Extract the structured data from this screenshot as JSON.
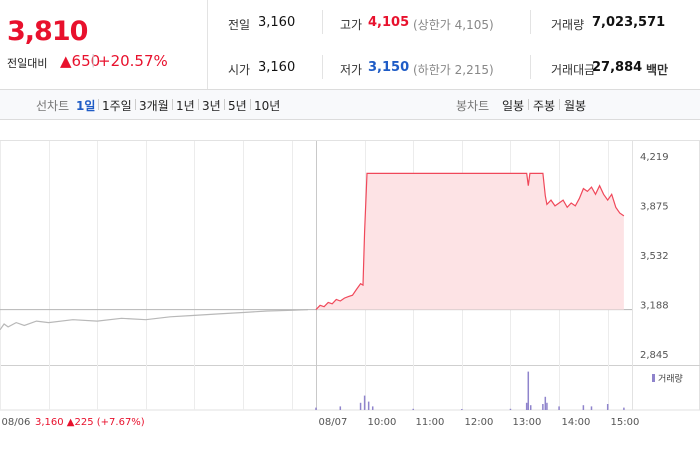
{
  "header": {
    "price": "3,810",
    "change_label": "전일대비",
    "change": "▲650",
    "change_rate": "+20.57%"
  },
  "info": [
    [
      {
        "label": "전일",
        "value": "3,160"
      },
      {
        "label": "고가",
        "value": "4,105",
        "extra": "(상한가 4,105)"
      },
      {
        "label": "거래량",
        "value": "7,023,571"
      }
    ],
    [
      {
        "label": "시가",
        "value": "3,160"
      },
      {
        "label": "저가",
        "value": "3,150",
        "extra": "(하한가 2,215)"
      },
      {
        "label": "거래대금",
        "value": "27,884",
        "unit": "백만"
      }
    ]
  ],
  "tabs": {
    "line_label": "선차트",
    "line": [
      "1일",
      "1주일",
      "3개월",
      "1년",
      "3년",
      "5년",
      "10년"
    ],
    "selected": "1일",
    "candle_label": "봉차트",
    "candle": [
      "일봉",
      "주봉",
      "월봉"
    ]
  },
  "chart_data": {
    "type": "line",
    "xlim": [
      "08/06 09:00",
      "08/07 15:30"
    ],
    "ylim": [
      2845,
      4219
    ],
    "yticks": [
      {
        "value": 4219,
        "label": "4,219"
      },
      {
        "value": 3875,
        "label": "3,875"
      },
      {
        "value": 3532,
        "label": "3,532"
      },
      {
        "value": 3188,
        "label": "3,188"
      },
      {
        "value": 2845,
        "label": "2,845"
      }
    ],
    "xticks": [
      {
        "value": "08/06 09:00",
        "label": "08/06"
      },
      {
        "value": "08/06 10:00",
        "label": null
      },
      {
        "value": "08/06 11:00",
        "label": null
      },
      {
        "value": "08/06 12:00",
        "label": null
      },
      {
        "value": "08/06 13:00",
        "label": null
      },
      {
        "value": "08/06 14:00",
        "label": null
      },
      {
        "value": "08/06 15:00",
        "label": null
      },
      {
        "value": "08/07 09:00",
        "label": "08/07"
      },
      {
        "value": "08/07 10:00",
        "label": "10:00"
      },
      {
        "value": "08/07 11:00",
        "label": "11:00"
      },
      {
        "value": "08/07 12:00",
        "label": "12:00"
      },
      {
        "value": "08/07 13:00",
        "label": "13:00"
      },
      {
        "value": "08/07 14:00",
        "label": "14:00"
      },
      {
        "value": "08/07 15:00",
        "label": "15:00"
      }
    ],
    "baseline": 3160,
    "annotation": "3,160 ▲225 (+7.67%)",
    "series": [
      {
        "color": "#b8b8b8",
        "x": [
          "08/06 09:00",
          "08/06 09:05",
          "08/06 09:10",
          "08/06 09:20",
          "08/06 09:30",
          "08/06 09:45",
          "08/06 10:00",
          "08/06 10:30",
          "08/06 11:00",
          "08/06 11:30",
          "08/06 12:00",
          "08/06 12:30",
          "08/06 13:00",
          "08/06 13:30",
          "08/06 14:00",
          "08/06 14:30",
          "08/06 15:00",
          "08/06 15:20"
        ],
        "values": [
          3020,
          3060,
          3040,
          3070,
          3050,
          3080,
          3070,
          3090,
          3080,
          3100,
          3090,
          3110,
          3120,
          3130,
          3140,
          3150,
          3155,
          3160
        ]
      },
      {
        "color": "#f0485a",
        "fill": "#fde3e5",
        "x": [
          "08/07 09:00",
          "08/07 09:05",
          "08/07 09:10",
          "08/07 09:15",
          "08/07 09:20",
          "08/07 09:25",
          "08/07 09:30",
          "08/07 09:35",
          "08/07 09:40",
          "08/07 09:45",
          "08/07 09:50",
          "08/07 09:55",
          "08/07 09:58",
          "08/07 10:00",
          "08/07 10:03",
          "08/07 10:30",
          "08/07 11:00",
          "08/07 12:00",
          "08/07 13:00",
          "08/07 13:20",
          "08/07 13:22",
          "08/07 13:24",
          "08/07 13:40",
          "08/07 13:43",
          "08/07 13:45",
          "08/07 13:50",
          "08/07 13:55",
          "08/07 14:00",
          "08/07 14:05",
          "08/07 14:10",
          "08/07 14:15",
          "08/07 14:20",
          "08/07 14:25",
          "08/07 14:30",
          "08/07 14:35",
          "08/07 14:40",
          "08/07 14:45",
          "08/07 14:50",
          "08/07 14:55",
          "08/07 15:00",
          "08/07 15:05",
          "08/07 15:10",
          "08/07 15:15",
          "08/07 15:20"
        ],
        "values": [
          3160,
          3190,
          3180,
          3210,
          3200,
          3230,
          3220,
          3240,
          3250,
          3260,
          3300,
          3340,
          3330,
          3700,
          4105,
          4105,
          4105,
          4105,
          4105,
          4105,
          4020,
          4105,
          4105,
          3950,
          3890,
          3920,
          3880,
          3900,
          3920,
          3870,
          3900,
          3880,
          3930,
          4000,
          3980,
          4010,
          3960,
          4020,
          3960,
          3920,
          3960,
          3870,
          3830,
          3810
        ]
      }
    ],
    "volume": {
      "name": "거래량",
      "color": "#8f84cc",
      "ylim": [
        0,
        350000
      ],
      "x": [
        "08/07 09:00",
        "08/07 09:30",
        "08/07 09:55",
        "08/07 10:00",
        "08/07 10:05",
        "08/07 10:10",
        "08/07 11:00",
        "08/07 12:00",
        "08/07 13:00",
        "08/07 13:20",
        "08/07 13:22",
        "08/07 13:25",
        "08/07 13:40",
        "08/07 13:43",
        "08/07 13:45",
        "08/07 14:00",
        "08/07 14:30",
        "08/07 14:40",
        "08/07 15:00",
        "08/07 15:20"
      ],
      "values": [
        20000,
        30000,
        60000,
        120000,
        70000,
        30000,
        10000,
        8000,
        10000,
        60000,
        320000,
        40000,
        50000,
        110000,
        60000,
        30000,
        40000,
        30000,
        50000,
        20000
      ]
    }
  }
}
